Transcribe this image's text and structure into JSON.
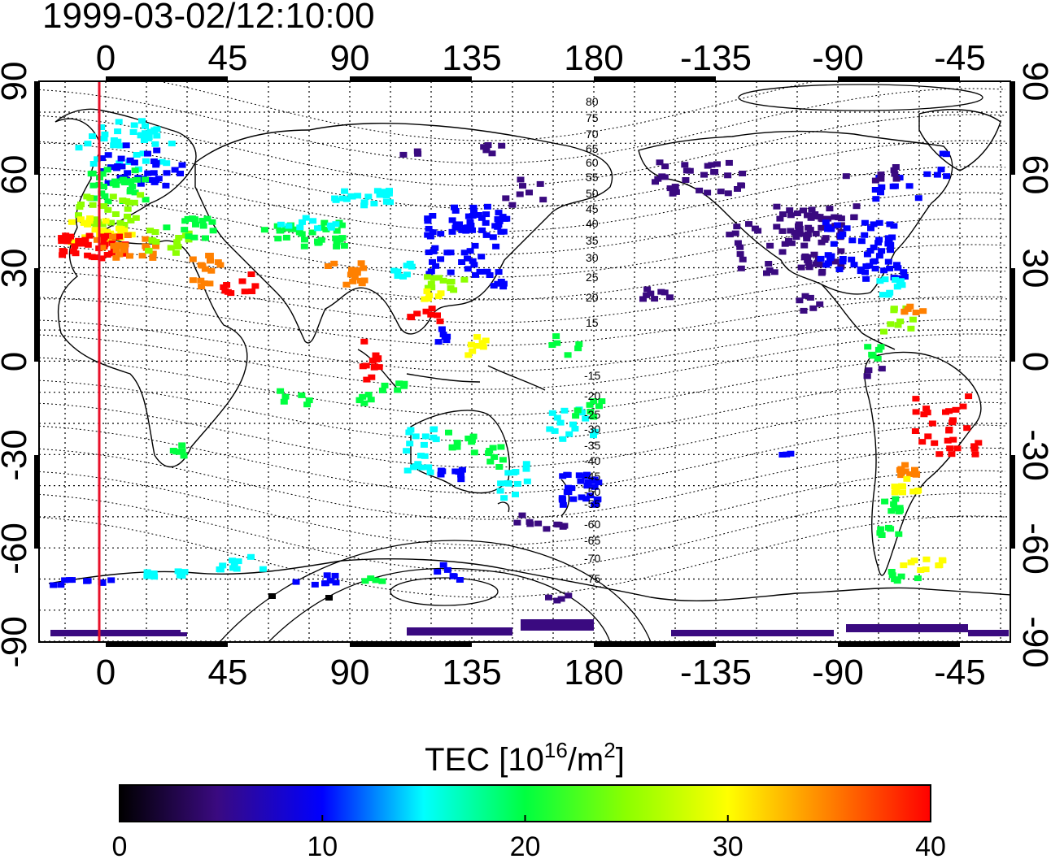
{
  "timestamp": "1999-03-02/12:10:00",
  "map": {
    "lon_ticks_top": [
      "0",
      "45",
      "90",
      "135",
      "180",
      "-135",
      "-90",
      "-45"
    ],
    "lon_ticks_bottom": [
      "0",
      "45",
      "90",
      "135",
      "180",
      "-135",
      "-90",
      "-45"
    ],
    "lat_ticks_left": [
      "90",
      "60",
      "30",
      "0",
      "-30",
      "-60",
      "-90"
    ],
    "lat_ticks_right": [
      "90",
      "60",
      "30",
      "0",
      "-30",
      "-60",
      "-90"
    ],
    "contour_labels_north": [
      "80",
      "75",
      "70",
      "65",
      "60",
      "55",
      "50",
      "45",
      "40",
      "35",
      "30",
      "25",
      "20",
      "15"
    ],
    "contour_labels_south": [
      "-15",
      "-20",
      "-25",
      "-30",
      "-35",
      "-40",
      "-45",
      "-50",
      "-55",
      "-60",
      "-65",
      "-70",
      "-75"
    ],
    "reference_line_color": "#e8102a"
  },
  "colorbar": {
    "label_main": "TEC  [10",
    "label_sup1": "16",
    "label_mid": "/m",
    "label_sup2": "2",
    "label_end": "]",
    "ticks": [
      "0",
      "10",
      "20",
      "30",
      "40"
    ],
    "min": 0,
    "max": 40
  },
  "colors": {
    "c0": "#000000",
    "c5": "#3a0a80",
    "c10": "#0000ff",
    "c15": "#00ffff",
    "c20": "#00ff40",
    "c25": "#8cff00",
    "c30": "#ffff00",
    "c35": "#ff8000",
    "c40": "#ff0000"
  }
}
